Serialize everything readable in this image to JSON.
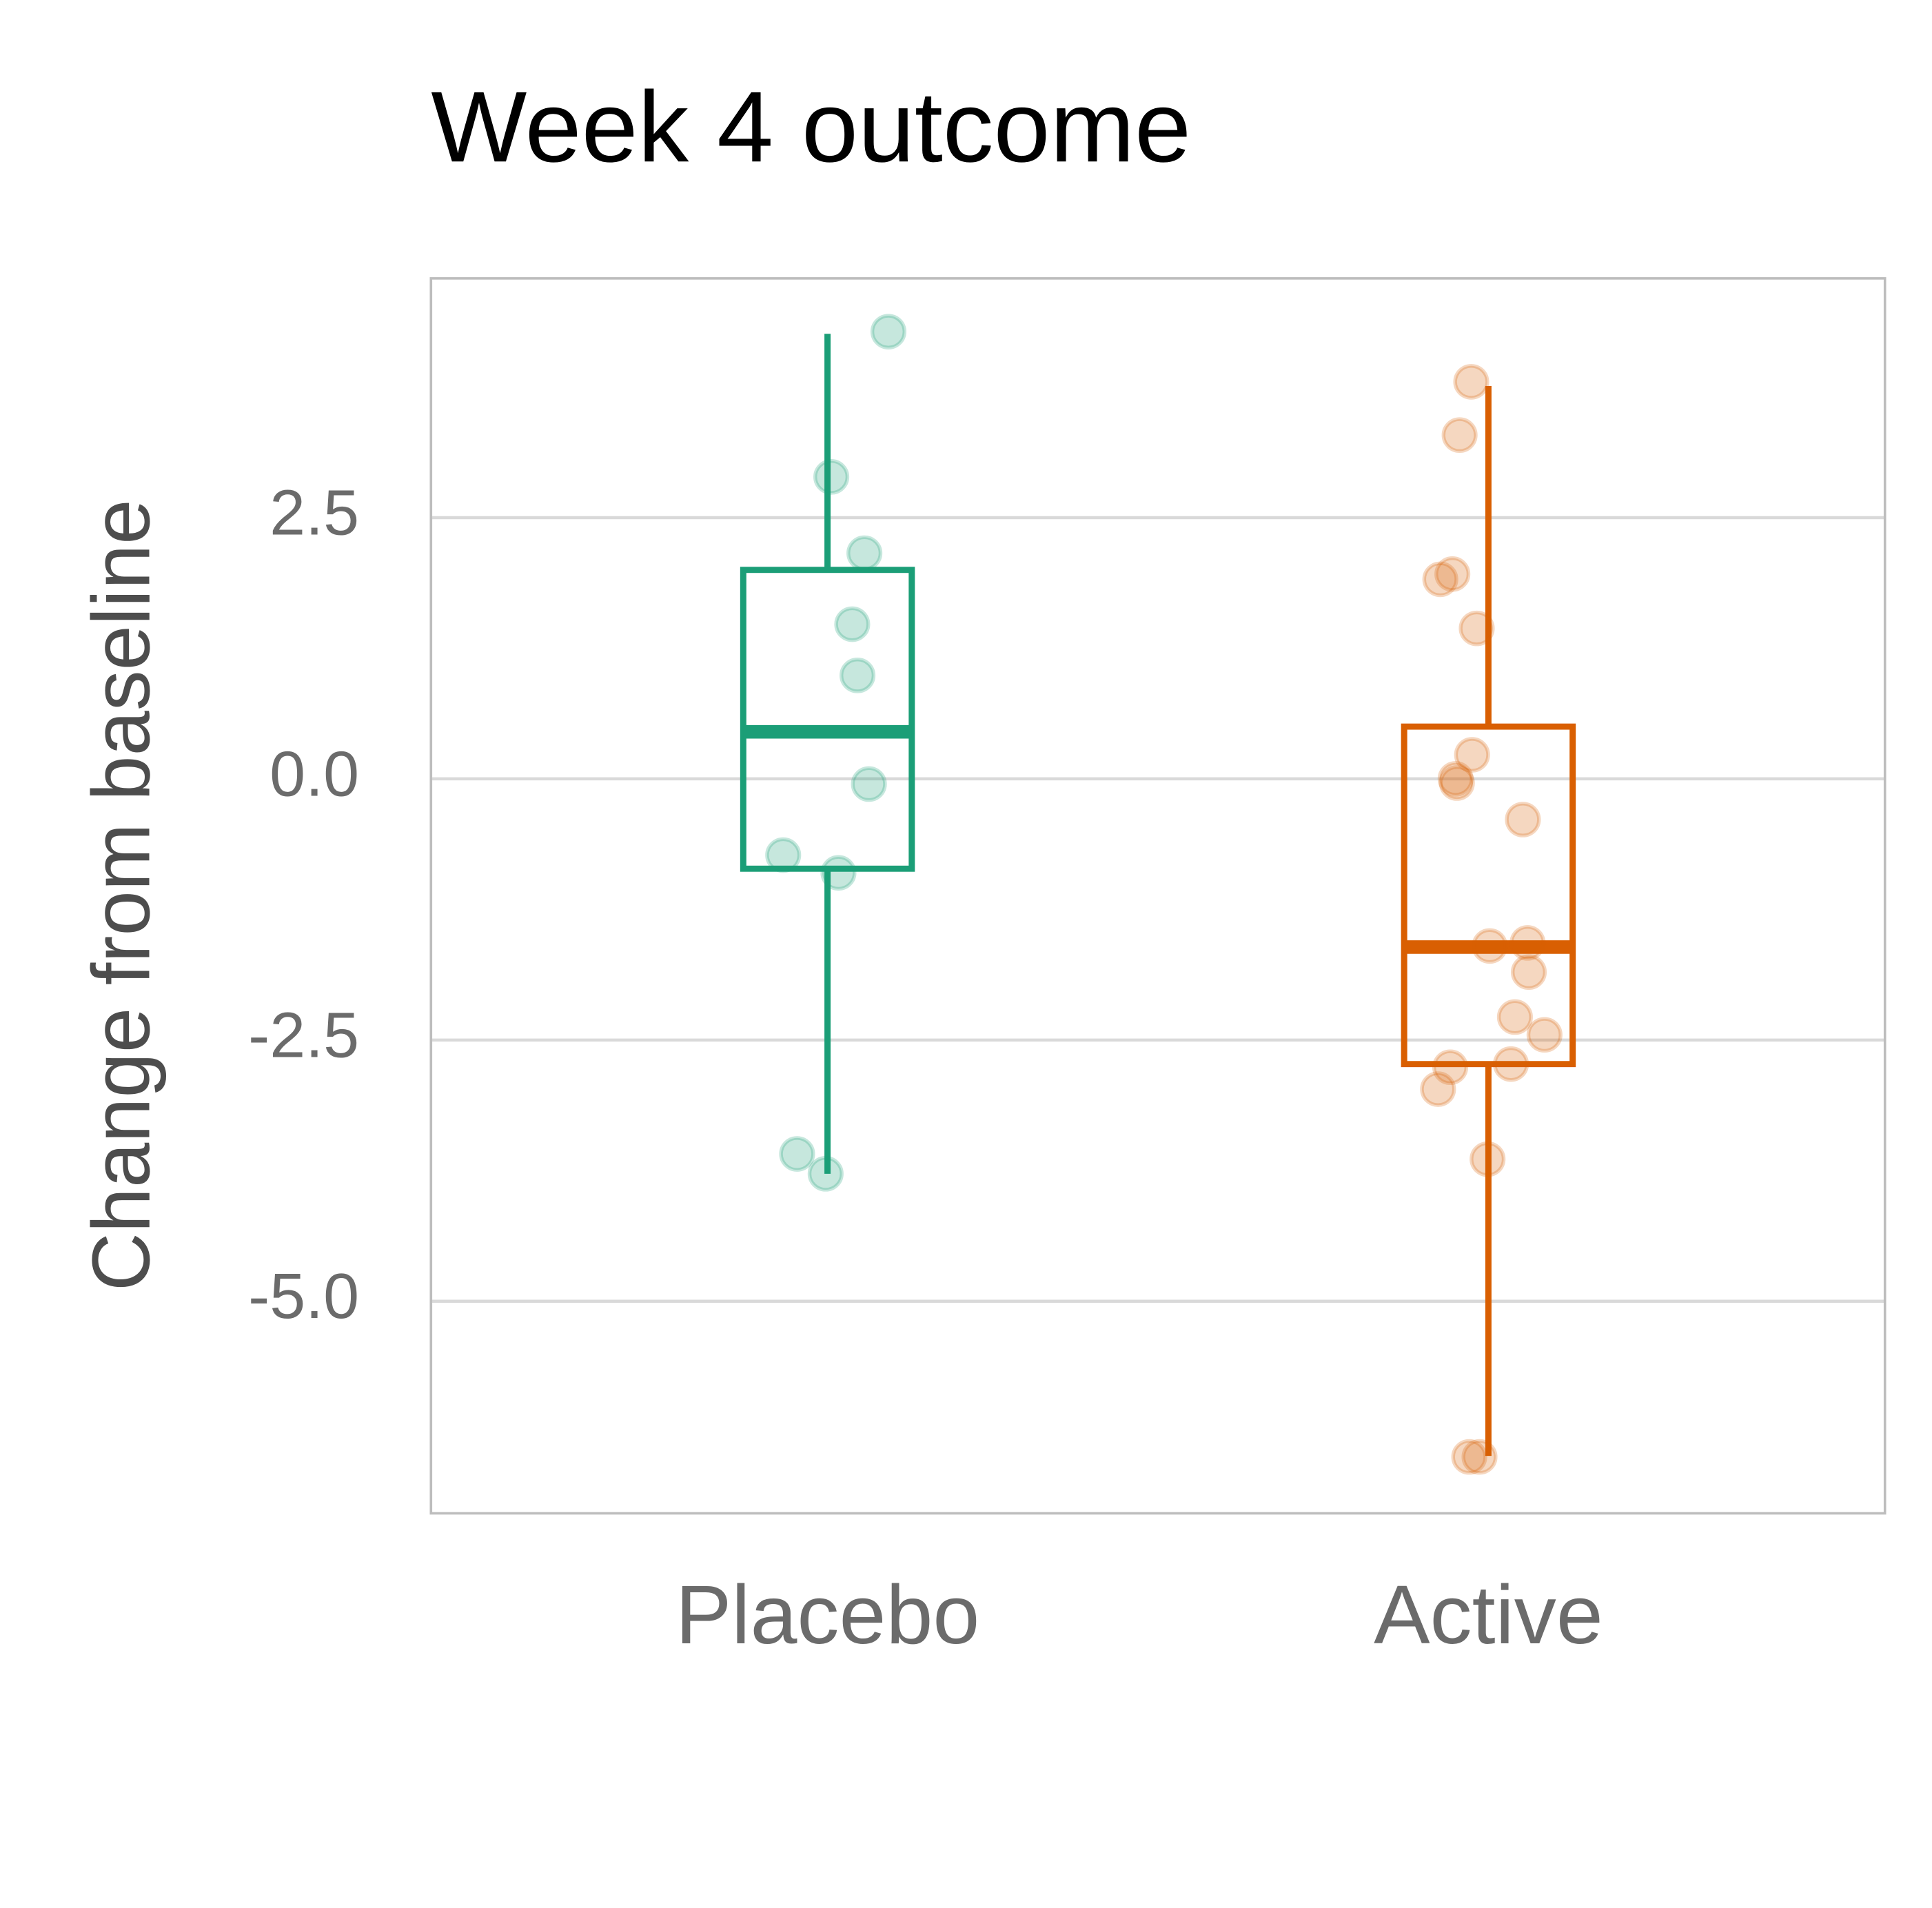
{
  "chart_data": {
    "type": "box",
    "title": "Week 4 outcome",
    "y_label": "Change from baseline",
    "categories": [
      "Placebo",
      "Active"
    ],
    "ylim": [
      -7.03,
      4.79
    ],
    "yticks": [
      {
        "value": -5,
        "label": "-5.0"
      },
      {
        "value": -2.5,
        "label": "-2.5"
      },
      {
        "value": 0,
        "label": "0.0"
      },
      2.5
    ],
    "grid": true,
    "groups": [
      {
        "color": "#1b9e77",
        "whisker_low": -3.78,
        "q1": -0.86,
        "median": 0.45,
        "q3": 2.0,
        "whisker_high": 4.26,
        "points": [
          4.28,
          2.89,
          2.16,
          1.48,
          0.99,
          -0.05,
          -0.9,
          -0.73,
          -3.59,
          -3.78
        ]
      },
      {
        "color": "#d95f02",
        "whisker_low": -6.48,
        "q1": -2.73,
        "median": -1.61,
        "q3": 0.5,
        "whisker_high": 3.76,
        "points": [
          3.8,
          3.29,
          1.96,
          1.91,
          1.44,
          0.23,
          0.0,
          -0.04,
          -0.39,
          -1.6,
          -1.57,
          -1.85,
          -2.28,
          -2.45,
          -2.73,
          -2.76,
          -2.97,
          -3.64,
          -6.49,
          -6.49
        ]
      }
    ]
  }
}
